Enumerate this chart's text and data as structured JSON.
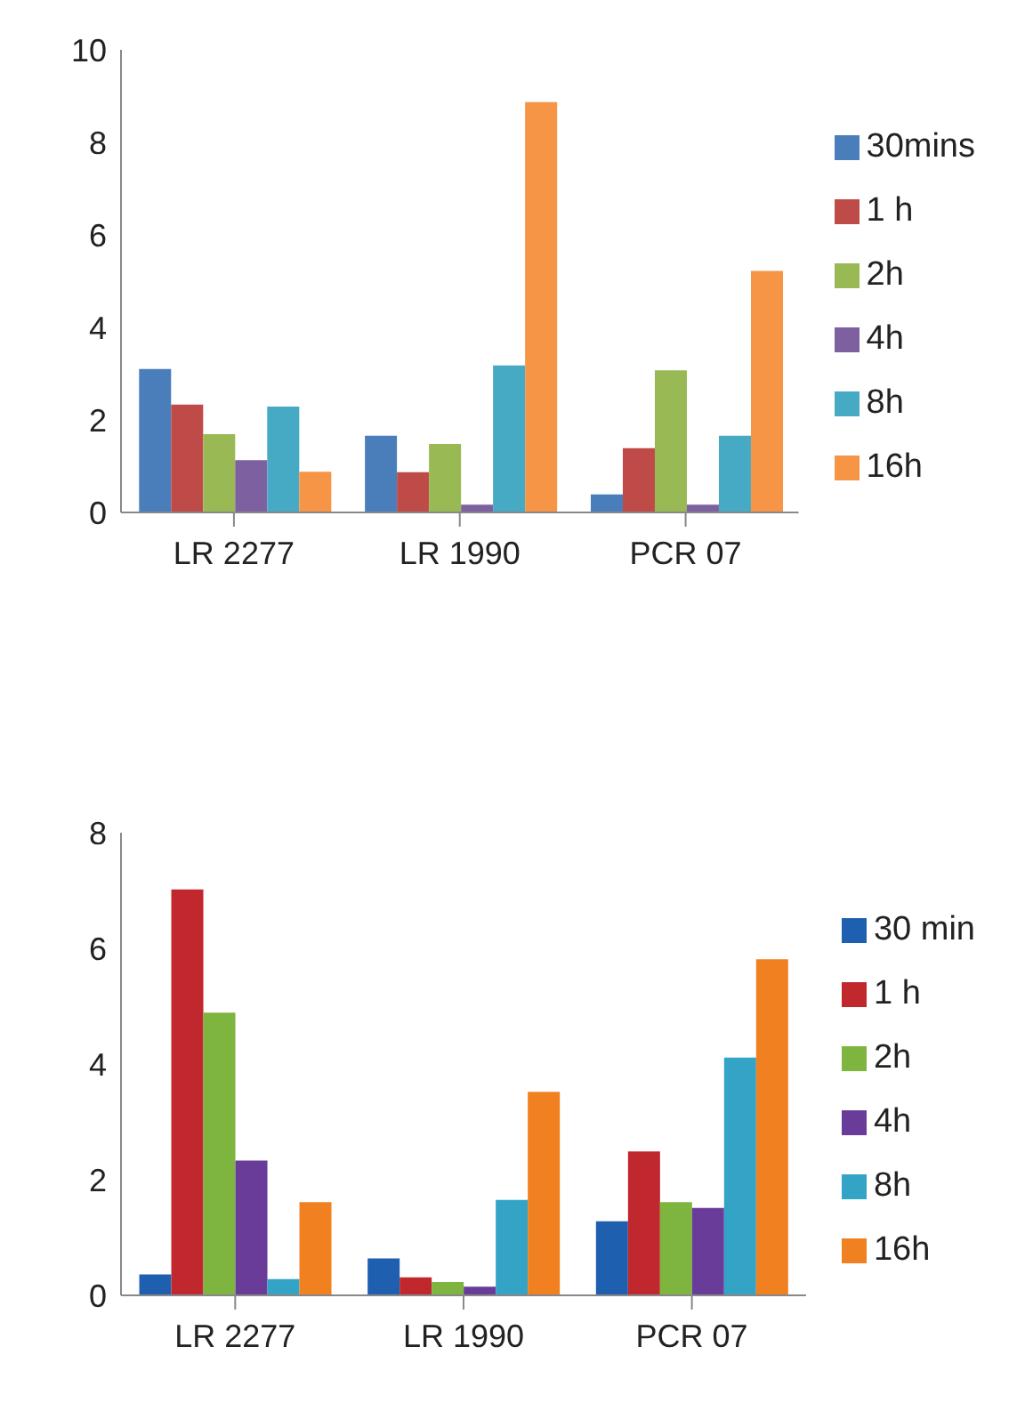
{
  "chart_data": [
    {
      "type": "bar",
      "categories": [
        "LR 2277",
        "LR 1990",
        "PCR 07"
      ],
      "ylim": [
        0,
        10
      ],
      "yticks": [
        0,
        2,
        4,
        6,
        8,
        10
      ],
      "grid": false,
      "legend": "right",
      "series": [
        {
          "name": "30mins",
          "color": "#4a7ebb",
          "values": [
            3.1,
            1.66,
            0.39
          ]
        },
        {
          "name": "1 h",
          "color": "#be4b48",
          "values": [
            2.33,
            0.87,
            1.39
          ]
        },
        {
          "name": "2h",
          "color": "#98b954",
          "values": [
            1.69,
            1.48,
            3.07
          ]
        },
        {
          "name": "4h",
          "color": "#7d60a0",
          "values": [
            1.13,
            0.17,
            0.17
          ]
        },
        {
          "name": "8h",
          "color": "#46aac5",
          "values": [
            2.29,
            3.18,
            1.66
          ]
        },
        {
          "name": "16h",
          "color": "#f69546",
          "values": [
            0.88,
            8.87,
            5.22
          ]
        }
      ]
    },
    {
      "type": "bar",
      "categories": [
        "LR 2277",
        "LR 1990",
        "PCR 07"
      ],
      "ylim": [
        0,
        8
      ],
      "yticks": [
        0,
        2,
        4,
        6,
        8
      ],
      "grid": false,
      "legend": "right",
      "series": [
        {
          "name": "30 min",
          "color": "#1f5fb0",
          "values": [
            0.36,
            0.64,
            1.28
          ]
        },
        {
          "name": "1 h",
          "color": "#c0282d",
          "values": [
            7.02,
            0.31,
            2.49
          ]
        },
        {
          "name": "2h",
          "color": "#7db53e",
          "values": [
            4.89,
            0.23,
            1.61
          ]
        },
        {
          "name": "4h",
          "color": "#6a3c9a",
          "values": [
            2.33,
            0.15,
            1.51
          ]
        },
        {
          "name": "8h",
          "color": "#33a3c6",
          "values": [
            0.28,
            1.65,
            4.11
          ]
        },
        {
          "name": "16h",
          "color": "#f08020",
          "values": [
            1.61,
            3.52,
            5.81
          ]
        }
      ]
    }
  ]
}
